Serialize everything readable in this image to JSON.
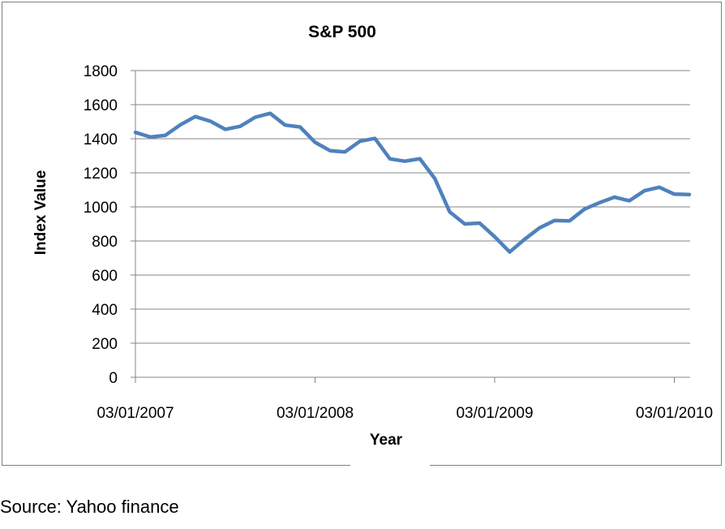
{
  "source_note": "Source: Yahoo finance",
  "chart_data": {
    "type": "line",
    "title": "S&P 500",
    "xlabel": "Year",
    "ylabel": "Index Value",
    "ylim": [
      0,
      1800
    ],
    "yticks": [
      0,
      200,
      400,
      600,
      800,
      1000,
      1200,
      1400,
      1600,
      1800
    ],
    "xticks": [
      "03/01/2007",
      "03/01/2008",
      "03/01/2009",
      "03/01/2010"
    ],
    "grid": "horizontal",
    "legend": "none",
    "line_color": "#4f81bd",
    "x": [
      "2007-03",
      "2007-04",
      "2007-05",
      "2007-06",
      "2007-07",
      "2007-08",
      "2007-09",
      "2007-10",
      "2007-11",
      "2007-12",
      "2008-01",
      "2008-02",
      "2008-03",
      "2008-04",
      "2008-05",
      "2008-06",
      "2008-07",
      "2008-08",
      "2008-09",
      "2008-10",
      "2008-11",
      "2008-12",
      "2009-01",
      "2009-02",
      "2009-03",
      "2009-04",
      "2009-05",
      "2009-06",
      "2009-07",
      "2009-08",
      "2009-09",
      "2009-10",
      "2009-11",
      "2009-12",
      "2010-01",
      "2010-02",
      "2010-03",
      "2010-04"
    ],
    "series": [
      {
        "values": [
          1437,
          1410,
          1420,
          1482,
          1530,
          1503,
          1455,
          1473,
          1526,
          1549,
          1480,
          1469,
          1379,
          1330,
          1323,
          1385,
          1402,
          1282,
          1268,
          1283,
          1166,
          970,
          900,
          905,
          825,
          735,
          810,
          877,
          920,
          918,
          987,
          1025,
          1057,
          1036,
          1095,
          1115,
          1075,
          1073
        ]
      }
    ]
  }
}
